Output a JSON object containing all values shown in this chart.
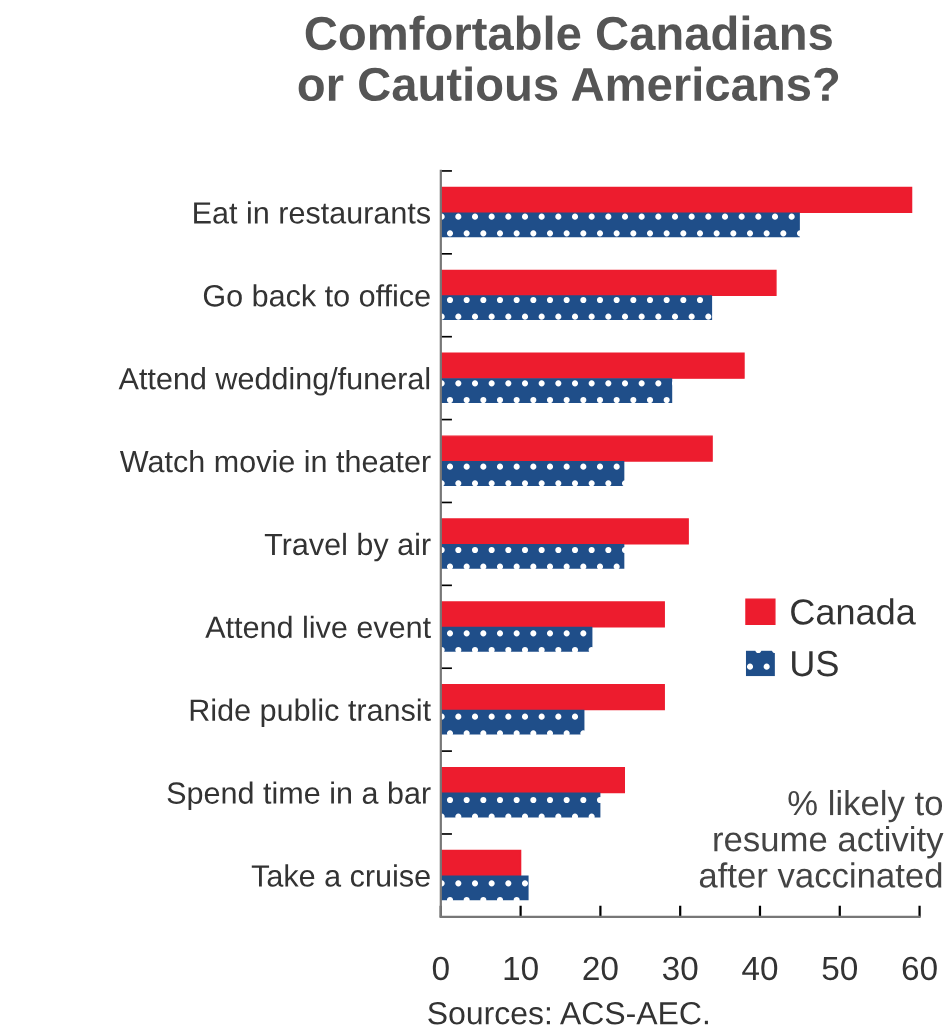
{
  "chart_data": {
    "type": "bar",
    "orientation": "horizontal",
    "title": "Comfortable Canadians\nor Cautious Americans?",
    "categories": [
      "Eat in restaurants",
      "Go back to office",
      "Attend wedding/funeral",
      "Watch movie in theater",
      "Travel by air",
      "Attend live event",
      "Ride public transit",
      "Spend time in a bar",
      "Take a cruise"
    ],
    "series": [
      {
        "name": "Canada",
        "color": "#ed1c2e",
        "values": [
          59,
          42,
          38,
          34,
          31,
          28,
          28,
          23,
          10
        ]
      },
      {
        "name": "US",
        "color": "#1f4e89",
        "values": [
          45,
          34,
          29,
          23,
          23,
          19,
          18,
          20,
          11
        ]
      }
    ],
    "xlim": [
      0,
      60
    ],
    "xticks": [
      0,
      10,
      20,
      30,
      40,
      50,
      60
    ],
    "grid": false,
    "legend": "right",
    "annotations": [
      "% likely to\nresume activity\nafter vaccinated",
      "Sources: ACS-AEC."
    ]
  }
}
